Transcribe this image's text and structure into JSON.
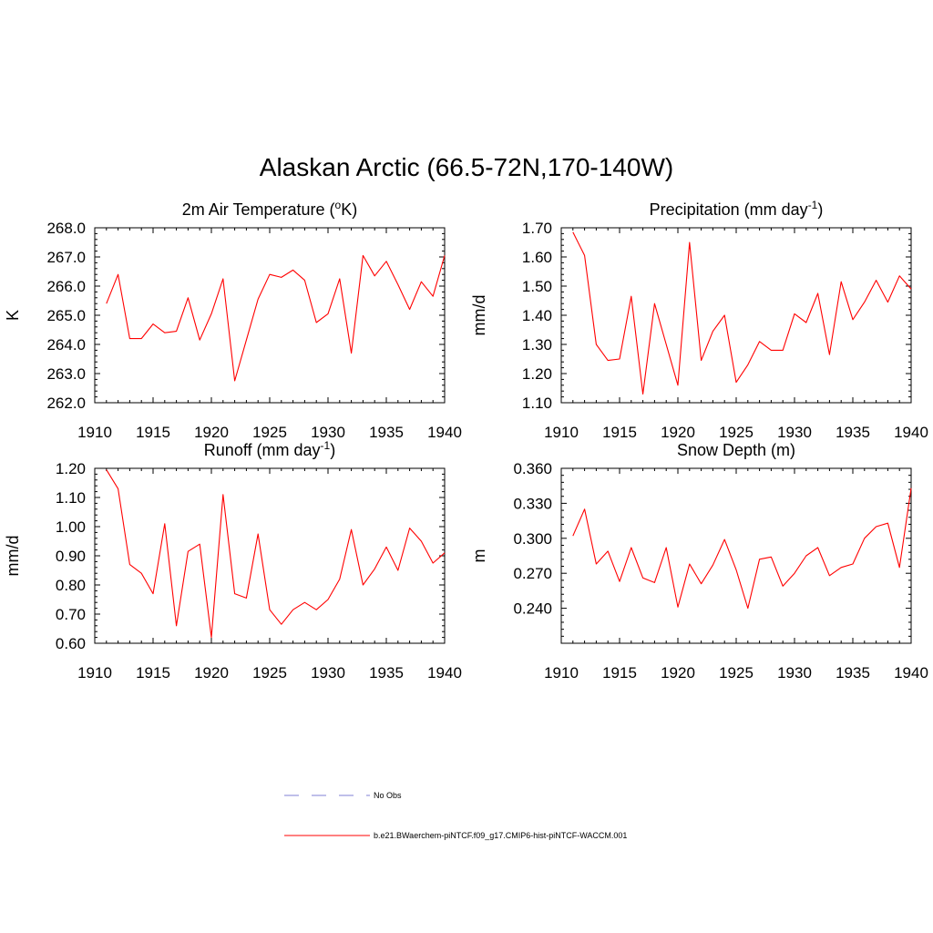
{
  "figure": {
    "title": "Alaskan Arctic (66.5-72N,170-140W)"
  },
  "legend": {
    "items": [
      {
        "label": "No Obs",
        "color": "#9999dd",
        "style": "dashed"
      },
      {
        "label": "b.e21.BWaerchem-piNTCF.f09_g17.CMIP6-hist-piNTCF-WACCM.001",
        "color": "#ff0000",
        "style": "solid"
      }
    ]
  },
  "chart_data": [
    {
      "type": "line",
      "title": "2m Air Temperature (",
      "title_sup": "o",
      "title_after": "K)",
      "ylabel": "K",
      "xlim": [
        1910,
        1940
      ],
      "ylim": [
        262.0,
        268.0
      ],
      "xticks": [
        1910,
        1915,
        1920,
        1925,
        1930,
        1935,
        1940
      ],
      "yticks": [
        "262.0",
        "263.0",
        "264.0",
        "265.0",
        "266.0",
        "267.0",
        "268.0"
      ],
      "color": "#ff0000",
      "x": [
        1911,
        1912,
        1913,
        1914,
        1915,
        1916,
        1917,
        1918,
        1919,
        1920,
        1921,
        1922,
        1923,
        1924,
        1925,
        1926,
        1927,
        1928,
        1929,
        1930,
        1931,
        1932,
        1933,
        1934,
        1935,
        1936,
        1937,
        1938,
        1939,
        1940
      ],
      "values": [
        265.4,
        266.4,
        264.2,
        264.2,
        264.7,
        264.4,
        264.45,
        265.6,
        264.15,
        265.05,
        266.25,
        262.75,
        264.15,
        265.55,
        266.4,
        266.3,
        266.55,
        266.2,
        264.75,
        265.05,
        266.25,
        263.7,
        267.05,
        266.35,
        266.85,
        266.05,
        265.2,
        266.15,
        265.65,
        267.05
      ]
    },
    {
      "type": "line",
      "title": "Precipitation (mm day",
      "title_sup": "-1",
      "title_after": ")",
      "ylabel": "mm/d",
      "xlim": [
        1910,
        1940
      ],
      "ylim": [
        1.1,
        1.7
      ],
      "xticks": [
        1910,
        1915,
        1920,
        1925,
        1930,
        1935,
        1940
      ],
      "yticks": [
        "1.10",
        "1.20",
        "1.30",
        "1.40",
        "1.50",
        "1.60",
        "1.70"
      ],
      "color": "#ff0000",
      "x": [
        1911,
        1912,
        1913,
        1914,
        1915,
        1916,
        1917,
        1918,
        1919,
        1920,
        1921,
        1922,
        1923,
        1924,
        1925,
        1926,
        1927,
        1928,
        1929,
        1930,
        1931,
        1932,
        1933,
        1934,
        1935,
        1936,
        1937,
        1938,
        1939,
        1940
      ],
      "values": [
        1.685,
        1.605,
        1.3,
        1.245,
        1.25,
        1.465,
        1.13,
        1.44,
        1.3,
        1.16,
        1.65,
        1.245,
        1.345,
        1.4,
        1.17,
        1.23,
        1.31,
        1.28,
        1.28,
        1.405,
        1.375,
        1.475,
        1.265,
        1.515,
        1.385,
        1.445,
        1.52,
        1.445,
        1.535,
        1.49
      ]
    },
    {
      "type": "line",
      "title": "Runoff (mm day",
      "title_sup": "-1",
      "title_after": ")",
      "ylabel": "mm/d",
      "xlim": [
        1910,
        1940
      ],
      "ylim": [
        0.6,
        1.2
      ],
      "xticks": [
        1910,
        1915,
        1920,
        1925,
        1930,
        1935,
        1940
      ],
      "yticks": [
        "0.60",
        "0.70",
        "0.80",
        "0.90",
        "1.00",
        "1.10",
        "1.20"
      ],
      "color": "#ff0000",
      "x": [
        1911,
        1912,
        1913,
        1914,
        1915,
        1916,
        1917,
        1918,
        1919,
        1920,
        1921,
        1922,
        1923,
        1924,
        1925,
        1926,
        1927,
        1928,
        1929,
        1930,
        1931,
        1932,
        1933,
        1934,
        1935,
        1936,
        1937,
        1938,
        1939,
        1940
      ],
      "values": [
        1.195,
        1.13,
        0.87,
        0.84,
        0.77,
        1.01,
        0.66,
        0.915,
        0.94,
        0.62,
        1.11,
        0.77,
        0.755,
        0.975,
        0.715,
        0.665,
        0.715,
        0.74,
        0.715,
        0.75,
        0.82,
        0.99,
        0.8,
        0.855,
        0.93,
        0.85,
        0.995,
        0.95,
        0.875,
        0.91
      ]
    },
    {
      "type": "line",
      "title": "Snow Depth (m)",
      "title_sup": "",
      "title_after": "",
      "ylabel": "m",
      "xlim": [
        1910,
        1940
      ],
      "ylim": [
        0.21,
        0.36
      ],
      "xticks": [
        1910,
        1915,
        1920,
        1925,
        1930,
        1935,
        1940
      ],
      "yticks": [
        "0.240",
        "0.270",
        "0.300",
        "0.330",
        "0.360"
      ],
      "ytick_values": [
        0.24,
        0.27,
        0.3,
        0.33,
        0.36
      ],
      "color": "#ff0000",
      "x": [
        1911,
        1912,
        1913,
        1914,
        1915,
        1916,
        1917,
        1918,
        1919,
        1920,
        1921,
        1922,
        1923,
        1924,
        1925,
        1926,
        1927,
        1928,
        1929,
        1930,
        1931,
        1932,
        1933,
        1934,
        1935,
        1936,
        1937,
        1938,
        1939,
        1940
      ],
      "values": [
        0.302,
        0.325,
        0.278,
        0.289,
        0.263,
        0.292,
        0.266,
        0.262,
        0.292,
        0.241,
        0.278,
        0.261,
        0.277,
        0.299,
        0.273,
        0.24,
        0.282,
        0.284,
        0.259,
        0.27,
        0.285,
        0.292,
        0.268,
        0.275,
        0.278,
        0.3,
        0.31,
        0.313,
        0.275,
        0.343
      ]
    }
  ]
}
